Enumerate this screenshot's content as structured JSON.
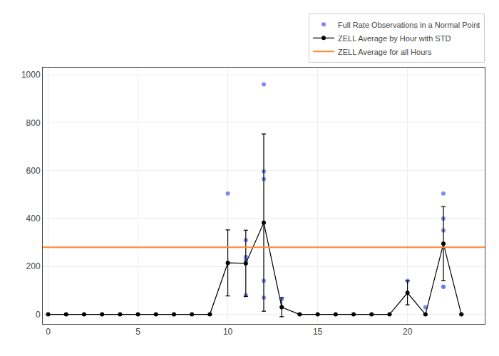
{
  "chart_data": {
    "type": "scatter",
    "xlim": [
      -0.3,
      24.3
    ],
    "ylim": [
      -40,
      1030
    ],
    "xticks": [
      0,
      5,
      10,
      15,
      20
    ],
    "yticks": [
      0,
      200,
      400,
      600,
      800,
      1000
    ],
    "grid": true,
    "legend": "upper right",
    "series": [
      {
        "name": "Full Rate Observations in a Normal Point",
        "type": "scatter",
        "marker": "circle",
        "color": "#6677ee",
        "x": [
          10,
          11,
          11,
          11,
          11,
          12,
          12,
          12,
          12,
          12,
          13,
          20,
          21,
          22,
          22,
          22,
          22,
          22
        ],
        "values": [
          505,
          310,
          240,
          225,
          80,
          597,
          565,
          960,
          140,
          70,
          65,
          140,
          30,
          505,
          400,
          350,
          115,
          115
        ]
      },
      {
        "name": "ZELL Average by Hour with STD",
        "type": "line",
        "marker": "circle",
        "color": "#000000",
        "x": [
          0,
          1,
          2,
          3,
          4,
          5,
          6,
          7,
          8,
          9,
          10,
          11,
          12,
          13,
          14,
          15,
          16,
          17,
          18,
          19,
          20,
          21,
          22,
          23
        ],
        "values": [
          0,
          0,
          0,
          0,
          0,
          0,
          0,
          0,
          0,
          0,
          215,
          213,
          383,
          30,
          0,
          0,
          0,
          0,
          0,
          0,
          90,
          0,
          295,
          0
        ],
        "std": [
          0,
          0,
          0,
          0,
          0,
          0,
          0,
          0,
          0,
          0,
          138,
          138,
          370,
          40,
          0,
          0,
          0,
          0,
          0,
          0,
          50,
          0,
          155,
          0
        ]
      },
      {
        "name": "ZELL Average for all Hours",
        "type": "hline",
        "color": "#ff8833",
        "values": [
          280
        ]
      }
    ]
  }
}
